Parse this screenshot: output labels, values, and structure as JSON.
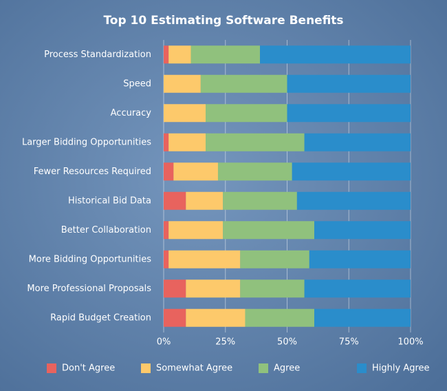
{
  "chart_data": {
    "type": "stacked-barh",
    "title": "Top 10 Estimating Software Benefits",
    "categories": [
      "Process Standardization",
      "Speed",
      "Accuracy",
      "Larger Bidding Opportunities",
      "Fewer Resources Required",
      "Historical Bid Data",
      "Better Collaboration",
      "More Bidding Opportunities",
      "More Professional Proposals",
      "Rapid Budget Creation"
    ],
    "series": [
      {
        "name": "Don't Agree",
        "color": "#e8635e",
        "values": [
          2,
          0,
          0,
          2,
          4,
          9,
          2,
          2,
          9,
          9
        ]
      },
      {
        "name": "Somewhat Agree",
        "color": "#fdc96b",
        "values": [
          9,
          15,
          17,
          15,
          18,
          15,
          22,
          29,
          22,
          24
        ]
      },
      {
        "name": "Agree",
        "color": "#90c17d",
        "values": [
          28,
          35,
          33,
          40,
          30,
          30,
          37,
          28,
          26,
          28
        ]
      },
      {
        "name": "Highly Agree",
        "color": "#2a8dcb",
        "values": [
          61,
          50,
          50,
          43,
          48,
          46,
          39,
          41,
          43,
          39
        ]
      }
    ],
    "xlim": [
      0,
      100
    ],
    "xticks": [
      {
        "value": 0,
        "label": "0%"
      },
      {
        "value": 25,
        "label": "25%"
      },
      {
        "value": 50,
        "label": "50%"
      },
      {
        "value": 75,
        "label": "75%"
      },
      {
        "value": 100,
        "label": "100%"
      }
    ],
    "grid": true,
    "legend": "bottom"
  }
}
